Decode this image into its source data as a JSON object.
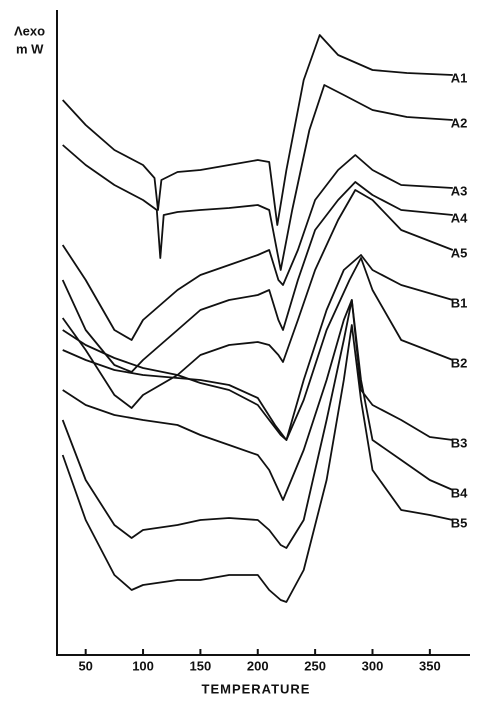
{
  "chart_data": {
    "type": "line",
    "ylabel": [
      "Λexo",
      "m W"
    ],
    "xlabel": "TEMPERATURE",
    "xlim": [
      25,
      385
    ],
    "xticks": [
      50,
      100,
      150,
      200,
      250,
      300,
      350
    ],
    "ylim": [
      0,
      645
    ],
    "color": "#111111",
    "series": [
      {
        "name": "A1",
        "x": [
          30,
          50,
          75,
          100,
          110,
          113,
          116,
          130,
          150,
          175,
          200,
          210,
          217,
          225,
          240,
          254,
          270,
          300,
          330,
          370
        ],
        "values": [
          555,
          530,
          505,
          490,
          477,
          445,
          475,
          483,
          485,
          490,
          495,
          493,
          430,
          485,
          575,
          620,
          600,
          585,
          582,
          580
        ]
      },
      {
        "name": "A2",
        "x": [
          30,
          50,
          75,
          100,
          112,
          115,
          118,
          130,
          150,
          175,
          200,
          210,
          220,
          230,
          245,
          258,
          275,
          300,
          330,
          370
        ],
        "values": [
          510,
          490,
          470,
          455,
          445,
          397,
          440,
          443,
          445,
          447,
          450,
          445,
          385,
          445,
          525,
          570,
          560,
          545,
          538,
          535
        ]
      },
      {
        "name": "A3",
        "x": [
          30,
          50,
          75,
          90,
          100,
          130,
          150,
          175,
          200,
          210,
          218,
          222,
          235,
          250,
          270,
          285,
          300,
          325,
          370
        ],
        "values": [
          410,
          375,
          325,
          315,
          335,
          365,
          380,
          390,
          400,
          405,
          375,
          370,
          405,
          455,
          485,
          500,
          485,
          470,
          467
        ]
      },
      {
        "name": "A4",
        "x": [
          30,
          50,
          75,
          90,
          100,
          130,
          150,
          175,
          200,
          210,
          218,
          222,
          235,
          250,
          270,
          285,
          300,
          325,
          370
        ],
        "values": [
          375,
          325,
          290,
          283,
          295,
          325,
          345,
          355,
          360,
          365,
          335,
          325,
          375,
          425,
          455,
          473,
          460,
          445,
          440
        ]
      },
      {
        "name": "A5",
        "x": [
          30,
          50,
          75,
          90,
          100,
          130,
          150,
          175,
          200,
          210,
          218,
          222,
          235,
          250,
          270,
          285,
          300,
          325,
          370
        ],
        "values": [
          337,
          305,
          260,
          247,
          260,
          280,
          300,
          310,
          313,
          310,
          300,
          293,
          335,
          385,
          435,
          465,
          455,
          425,
          405
        ]
      },
      {
        "name": "B1",
        "x": [
          30,
          50,
          75,
          100,
          130,
          150,
          175,
          200,
          210,
          220,
          225,
          240,
          260,
          275,
          290,
          300,
          325,
          370
        ],
        "values": [
          325,
          310,
          297,
          287,
          280,
          272,
          265,
          250,
          235,
          220,
          215,
          275,
          345,
          385,
          400,
          385,
          370,
          355
        ]
      },
      {
        "name": "B2",
        "x": [
          30,
          50,
          75,
          100,
          130,
          150,
          175,
          200,
          215,
          225,
          240,
          260,
          280,
          290,
          300,
          325,
          370
        ],
        "values": [
          305,
          295,
          285,
          280,
          277,
          275,
          270,
          257,
          230,
          215,
          255,
          325,
          375,
          397,
          365,
          315,
          295
        ]
      },
      {
        "name": "B3",
        "x": [
          30,
          50,
          75,
          100,
          130,
          150,
          175,
          200,
          210,
          220,
          222,
          240,
          260,
          275,
          282,
          290,
          300,
          325,
          350,
          370
        ],
        "values": [
          265,
          250,
          240,
          235,
          230,
          220,
          210,
          200,
          185,
          160,
          155,
          205,
          275,
          335,
          355,
          265,
          250,
          235,
          218,
          215
        ]
      },
      {
        "name": "B4",
        "x": [
          30,
          50,
          75,
          90,
          100,
          130,
          150,
          175,
          200,
          210,
          220,
          225,
          240,
          260,
          275,
          282,
          290,
          300,
          325,
          350,
          370
        ],
        "values": [
          235,
          175,
          130,
          117,
          125,
          130,
          135,
          137,
          135,
          125,
          110,
          107,
          135,
          235,
          315,
          355,
          275,
          215,
          195,
          175,
          165
        ]
      },
      {
        "name": "B5",
        "x": [
          30,
          50,
          75,
          90,
          100,
          130,
          150,
          175,
          200,
          210,
          220,
          225,
          240,
          260,
          275,
          282,
          290,
          300,
          325,
          350,
          370
        ],
        "values": [
          200,
          135,
          80,
          65,
          70,
          75,
          75,
          80,
          80,
          65,
          55,
          53,
          85,
          175,
          275,
          330,
          255,
          185,
          145,
          140,
          135
        ]
      }
    ]
  }
}
